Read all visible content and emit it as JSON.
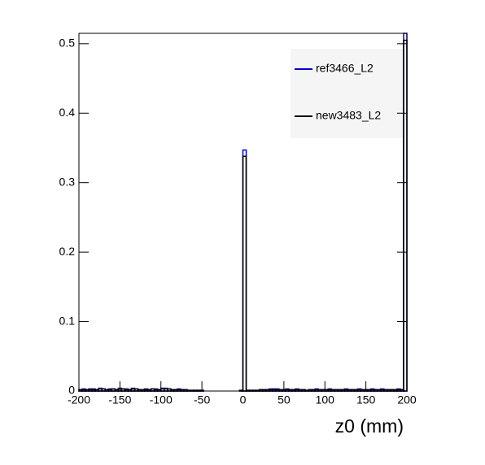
{
  "chart_data": {
    "type": "histogram",
    "x_label": "z0 (mm)",
    "bins": [
      -200,
      -196,
      -192,
      -188,
      -184,
      -180,
      -176,
      -172,
      -168,
      -164,
      -160,
      -156,
      -152,
      -148,
      -144,
      -140,
      -136,
      -132,
      -128,
      -124,
      -120,
      -116,
      -112,
      -108,
      -104,
      -100,
      -96,
      -92,
      -88,
      -84,
      -80,
      -76,
      -72,
      -68,
      -64,
      -60,
      -56,
      -52,
      -48,
      -44,
      -40,
      -36,
      -32,
      -28,
      -24,
      -20,
      -16,
      -12,
      -8,
      -4,
      0,
      4,
      8,
      12,
      16,
      20,
      24,
      28,
      32,
      36,
      40,
      44,
      48,
      52,
      56,
      60,
      64,
      68,
      72,
      76,
      80,
      84,
      88,
      92,
      96,
      100,
      104,
      108,
      112,
      116,
      120,
      124,
      128,
      132,
      136,
      140,
      144,
      148,
      152,
      156,
      160,
      164,
      168,
      172,
      176,
      180,
      184,
      188,
      192,
      196,
      200
    ],
    "series": [
      {
        "name": "ref3466_L2",
        "color": "#0000cc",
        "values": [
          0.002,
          0.003,
          0.002,
          0.002,
          0.003,
          0.002,
          0.004,
          0.003,
          0.002,
          0.003,
          0.003,
          0.002,
          0.004,
          0.003,
          0.003,
          0.002,
          0.004,
          0.003,
          0.002,
          0.002,
          0.003,
          0.002,
          0.003,
          0.003,
          0.002,
          0.004,
          0.004,
          0.003,
          0.002,
          0.002,
          0.003,
          0.002,
          0.002,
          0.001,
          0.001,
          0.001,
          0.001,
          0.001,
          0,
          0,
          0,
          0,
          0,
          0,
          0,
          0,
          0,
          0,
          0,
          0.001,
          0.347,
          0.001,
          0.001,
          0.001,
          0.001,
          0.002,
          0.002,
          0.002,
          0.003,
          0.003,
          0.003,
          0.002,
          0.002,
          0.003,
          0.002,
          0.002,
          0.003,
          0.002,
          0.002,
          0.001,
          0.002,
          0.002,
          0.003,
          0.002,
          0.002,
          0.002,
          0.003,
          0.002,
          0.002,
          0.002,
          0.002,
          0.003,
          0.002,
          0.002,
          0.002,
          0.003,
          0.002,
          0.002,
          0.002,
          0.003,
          0.002,
          0.002,
          0.003,
          0.002,
          0.002,
          0.002,
          0.002,
          0.003,
          0.002,
          0.515
        ]
      },
      {
        "name": "new3483_L2",
        "color": "#000000",
        "values": [
          0.002,
          0.002,
          0.002,
          0.003,
          0.002,
          0.002,
          0.003,
          0.003,
          0.002,
          0.002,
          0.003,
          0.002,
          0.003,
          0.003,
          0.002,
          0.002,
          0.003,
          0.003,
          0.002,
          0.002,
          0.002,
          0.002,
          0.003,
          0.002,
          0.002,
          0.003,
          0.003,
          0.003,
          0.002,
          0.002,
          0.002,
          0.002,
          0.002,
          0.001,
          0.001,
          0.001,
          0.001,
          0.001,
          0,
          0,
          0,
          0,
          0,
          0,
          0,
          0,
          0,
          0,
          0,
          0.001,
          0.338,
          0.001,
          0.001,
          0.001,
          0.001,
          0.002,
          0.002,
          0.002,
          0.002,
          0.002,
          0.002,
          0.002,
          0.002,
          0.002,
          0.002,
          0.002,
          0.002,
          0.002,
          0.002,
          0.001,
          0.002,
          0.002,
          0.002,
          0.002,
          0.002,
          0.002,
          0.002,
          0.002,
          0.002,
          0.002,
          0.002,
          0.002,
          0.002,
          0.002,
          0.002,
          0.002,
          0.002,
          0.002,
          0.002,
          0.002,
          0.002,
          0.002,
          0.002,
          0.002,
          0.002,
          0.002,
          0.002,
          0.002,
          0.002,
          0.505
        ]
      }
    ],
    "xlim": [
      -200,
      200
    ],
    "xticks": [
      -200,
      -150,
      -100,
      -50,
      0,
      50,
      100,
      150,
      200
    ],
    "ylim": [
      0,
      0.515
    ],
    "yticks": [
      0,
      0.1,
      0.2,
      0.3,
      0.4,
      0.5
    ]
  }
}
